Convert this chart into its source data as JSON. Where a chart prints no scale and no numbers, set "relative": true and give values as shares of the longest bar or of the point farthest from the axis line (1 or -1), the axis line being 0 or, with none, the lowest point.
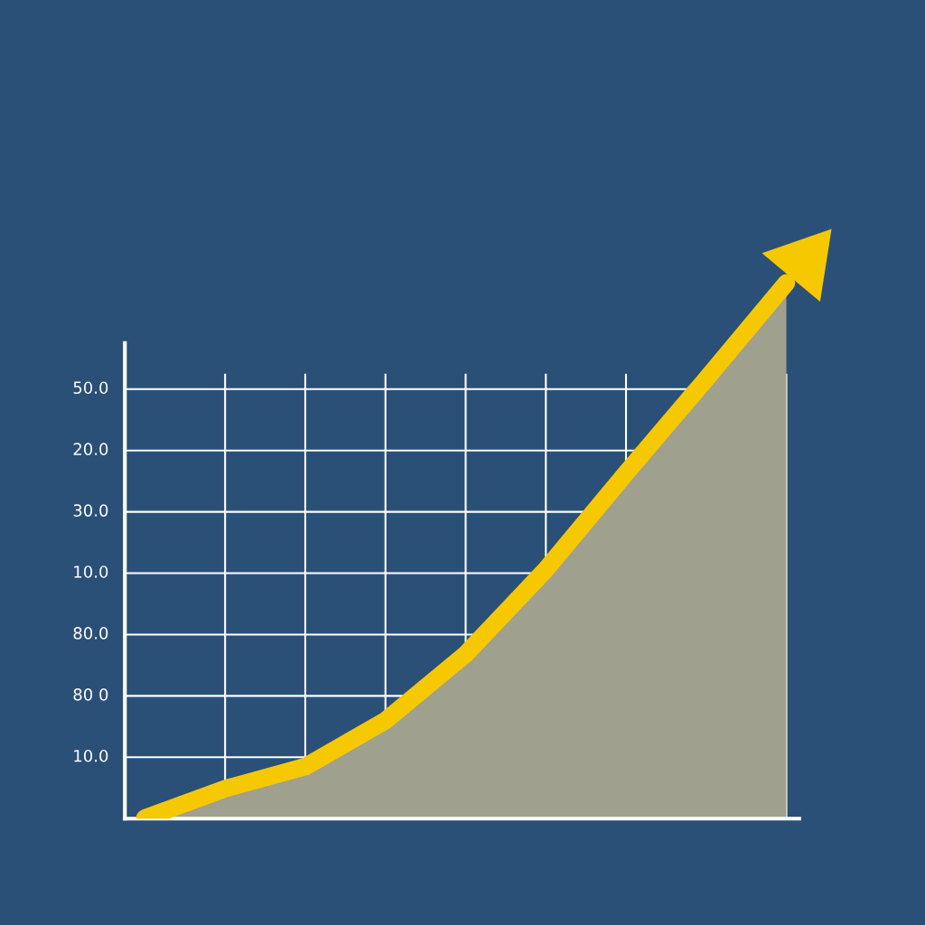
{
  "chart_data": {
    "type": "area",
    "relative": true,
    "categories": [
      null,
      null,
      null,
      null,
      null,
      null,
      null,
      null,
      null
    ],
    "series": [
      {
        "color": "#f5c800",
        "values": [
          0.001,
          0.056,
          0.097,
          0.183,
          0.307,
          0.465,
          0.645,
          0.821,
          1
        ]
      }
    ],
    "annotations": [
      "10.0",
      "80 0",
      "80.0",
      "10.0",
      "30.0",
      "20.0",
      "50.0"
    ],
    "grid": true
  }
}
